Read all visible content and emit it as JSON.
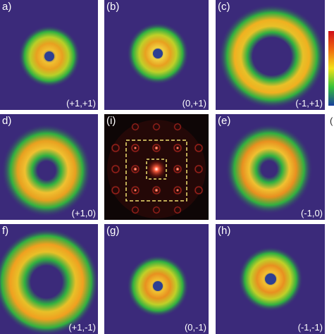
{
  "panels": [
    {
      "letter": "a)",
      "index": "(+1,+1)"
    },
    {
      "letter": "(b)",
      "index": "(0,+1)"
    },
    {
      "letter": "(c)",
      "index": "(-1,+1)"
    },
    {
      "letter": "d)",
      "index": "(+1,0)"
    },
    {
      "letter": "(i)",
      "index": ""
    },
    {
      "letter": "(e)",
      "index": "(-1,0)"
    },
    {
      "letter": "f)",
      "index": "(+1,-1)"
    },
    {
      "letter": "(g)",
      "index": "(0,-1)"
    },
    {
      "letter": "(h)",
      "index": "(-1,-1)"
    }
  ],
  "colorbar": {
    "tick_label": "(",
    "colors": [
      "#d0101a",
      "#f06a10",
      "#f3e21a",
      "#35c23a",
      "#1a3f9e"
    ]
  }
}
